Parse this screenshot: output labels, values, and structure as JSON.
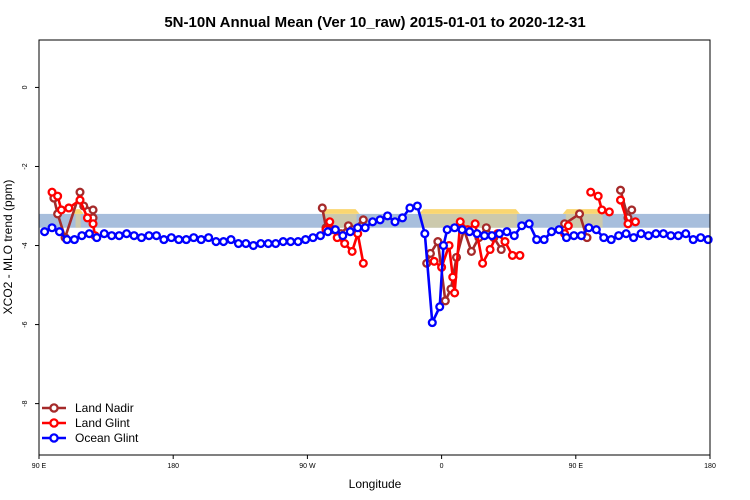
{
  "chart_data": {
    "type": "line",
    "title": "5N-10N Annual Mean (Ver 10_raw)   2015-01-01 to 2020-12-31",
    "xlabel": "Longitude",
    "ylabel": "XCO2 - MLO trend (ppm)",
    "xlim": [
      0,
      360
    ],
    "ylim": [
      -9.3,
      1.2
    ],
    "x_ticks": [
      {
        "x": 0,
        "label": "90 E"
      },
      {
        "x": 72,
        "label": "180"
      },
      {
        "x": 144,
        "label": "90 W"
      },
      {
        "x": 216,
        "label": "0"
      },
      {
        "x": 288,
        "label": "90 E"
      },
      {
        "x": 360,
        "label": "180"
      }
    ],
    "y_ticks": [
      0,
      -2,
      -4,
      -6,
      -8
    ],
    "reference_band": {
      "y_low": -3.55,
      "y_high": -3.2,
      "color": "#a7bedc"
    },
    "land_mask": {
      "color": "#fad670",
      "segments": [
        [
          18,
          24
        ],
        [
          152,
          172
        ],
        [
          204,
          258
        ],
        [
          281,
          304
        ]
      ]
    },
    "legend": {
      "position": "bottom-left",
      "entries": [
        {
          "name": "Land Nadir",
          "color": "#a52a2a"
        },
        {
          "name": "Land Glint",
          "color": "#ff0000"
        },
        {
          "name": "Ocean Glint",
          "color": "#0000ff"
        }
      ]
    },
    "series": [
      {
        "name": "Land Nadir",
        "color": "#a52a2a",
        "points": [
          [
            8,
            -2.8
          ],
          [
            10,
            -3.2
          ],
          [
            14,
            -3.8
          ],
          [
            22,
            -2.65
          ],
          [
            24,
            -3.0
          ],
          [
            29,
            -3.1
          ],
          [
            29,
            -3.3
          ],
          null,
          [
            152,
            -3.05
          ],
          [
            154,
            -3.55
          ],
          [
            158,
            -3.6
          ],
          [
            162,
            -3.7
          ],
          [
            166,
            -3.5
          ],
          [
            168,
            -3.6
          ],
          [
            174,
            -3.35
          ],
          null,
          [
            208,
            -4.45
          ],
          [
            210,
            -4.2
          ],
          [
            214,
            -3.9
          ],
          [
            218,
            -5.4
          ],
          [
            221,
            -5.1
          ],
          [
            224,
            -4.3
          ],
          [
            228,
            -3.6
          ],
          [
            232,
            -4.15
          ],
          [
            236,
            -3.8
          ],
          [
            240,
            -3.55
          ],
          [
            244,
            -3.8
          ],
          [
            248,
            -4.1
          ],
          null,
          [
            282,
            -3.45
          ],
          [
            290,
            -3.2
          ],
          [
            294,
            -3.8
          ],
          null,
          [
            312,
            -2.6
          ],
          [
            316,
            -3.3
          ],
          [
            318,
            -3.1
          ]
        ]
      },
      {
        "name": "Land Glint",
        "color": "#ff0000",
        "points": [
          [
            7,
            -2.65
          ],
          [
            10,
            -2.75
          ],
          [
            12,
            -3.1
          ],
          [
            16,
            -3.05
          ],
          [
            22,
            -2.85
          ],
          [
            26,
            -3.3
          ],
          [
            29,
            -3.45
          ],
          [
            30,
            -3.75
          ],
          null,
          [
            154,
            -3.6
          ],
          [
            156,
            -3.4
          ],
          [
            160,
            -3.8
          ],
          [
            164,
            -3.95
          ],
          [
            168,
            -4.15
          ],
          [
            171,
            -3.7
          ],
          [
            174,
            -4.45
          ],
          null,
          [
            212,
            -4.4
          ],
          [
            216,
            -4.55
          ],
          [
            220,
            -4.0
          ],
          [
            222,
            -4.8
          ],
          [
            223,
            -5.2
          ],
          [
            226,
            -3.4
          ],
          [
            230,
            -3.6
          ],
          [
            234,
            -3.45
          ],
          [
            238,
            -4.45
          ],
          [
            242,
            -4.1
          ],
          [
            246,
            -3.7
          ],
          [
            250,
            -3.9
          ],
          [
            254,
            -4.25
          ],
          [
            258,
            -4.25
          ],
          null,
          [
            282,
            -3.7
          ],
          [
            284,
            -3.5
          ],
          null,
          [
            296,
            -2.65
          ],
          [
            300,
            -2.75
          ],
          [
            302,
            -3.1
          ],
          [
            306,
            -3.15
          ],
          null,
          [
            312,
            -2.85
          ],
          [
            316,
            -3.45
          ],
          [
            320,
            -3.4
          ]
        ]
      },
      {
        "name": "Ocean Glint",
        "color": "#0000ff",
        "points": [
          [
            3,
            -3.65
          ],
          [
            7,
            -3.55
          ],
          [
            11,
            -3.65
          ],
          [
            15,
            -3.85
          ],
          [
            19,
            -3.85
          ],
          [
            23,
            -3.75
          ],
          [
            27,
            -3.7
          ],
          [
            31,
            -3.8
          ],
          [
            35,
            -3.7
          ],
          [
            39,
            -3.75
          ],
          [
            43,
            -3.75
          ],
          [
            47,
            -3.7
          ],
          [
            51,
            -3.75
          ],
          [
            55,
            -3.8
          ],
          [
            59,
            -3.75
          ],
          [
            63,
            -3.75
          ],
          [
            67,
            -3.85
          ],
          [
            71,
            -3.8
          ],
          [
            75,
            -3.85
          ],
          [
            79,
            -3.85
          ],
          [
            83,
            -3.8
          ],
          [
            87,
            -3.85
          ],
          [
            91,
            -3.8
          ],
          [
            95,
            -3.9
          ],
          [
            99,
            -3.9
          ],
          [
            103,
            -3.85
          ],
          [
            107,
            -3.95
          ],
          [
            111,
            -3.95
          ],
          [
            115,
            -4.0
          ],
          [
            119,
            -3.95
          ],
          [
            123,
            -3.95
          ],
          [
            127,
            -3.95
          ],
          [
            131,
            -3.9
          ],
          [
            135,
            -3.9
          ],
          [
            139,
            -3.9
          ],
          [
            143,
            -3.85
          ],
          [
            147,
            -3.8
          ],
          [
            151,
            -3.75
          ],
          [
            155,
            -3.65
          ],
          [
            159,
            -3.6
          ],
          [
            163,
            -3.75
          ],
          [
            167,
            -3.65
          ],
          [
            171,
            -3.55
          ],
          [
            175,
            -3.55
          ],
          [
            179,
            -3.4
          ],
          [
            183,
            -3.35
          ],
          [
            187,
            -3.25
          ],
          [
            191,
            -3.4
          ],
          [
            195,
            -3.3
          ],
          [
            199,
            -3.05
          ],
          [
            203,
            -3.0
          ],
          [
            207,
            -3.7
          ],
          [
            211,
            -5.95
          ],
          [
            215,
            -5.55
          ],
          [
            217,
            -4.0
          ],
          [
            219,
            -3.6
          ],
          [
            223,
            -3.55
          ],
          [
            227,
            -3.6
          ],
          [
            231,
            -3.65
          ],
          [
            235,
            -3.7
          ],
          [
            239,
            -3.75
          ],
          [
            243,
            -3.75
          ],
          [
            247,
            -3.7
          ],
          [
            251,
            -3.65
          ],
          [
            255,
            -3.75
          ],
          [
            259,
            -3.5
          ],
          [
            263,
            -3.45
          ],
          [
            267,
            -3.85
          ],
          [
            271,
            -3.85
          ],
          [
            275,
            -3.65
          ],
          [
            279,
            -3.6
          ],
          [
            283,
            -3.8
          ],
          [
            287,
            -3.75
          ],
          [
            291,
            -3.75
          ],
          [
            295,
            -3.55
          ],
          [
            299,
            -3.6
          ],
          [
            303,
            -3.8
          ],
          [
            307,
            -3.85
          ],
          [
            311,
            -3.75
          ],
          [
            315,
            -3.7
          ],
          [
            319,
            -3.8
          ],
          [
            323,
            -3.7
          ],
          [
            327,
            -3.75
          ],
          [
            331,
            -3.7
          ],
          [
            335,
            -3.7
          ],
          [
            339,
            -3.75
          ],
          [
            343,
            -3.75
          ],
          [
            347,
            -3.7
          ],
          [
            351,
            -3.85
          ],
          [
            355,
            -3.8
          ],
          [
            359,
            -3.85
          ]
        ]
      }
    ]
  }
}
